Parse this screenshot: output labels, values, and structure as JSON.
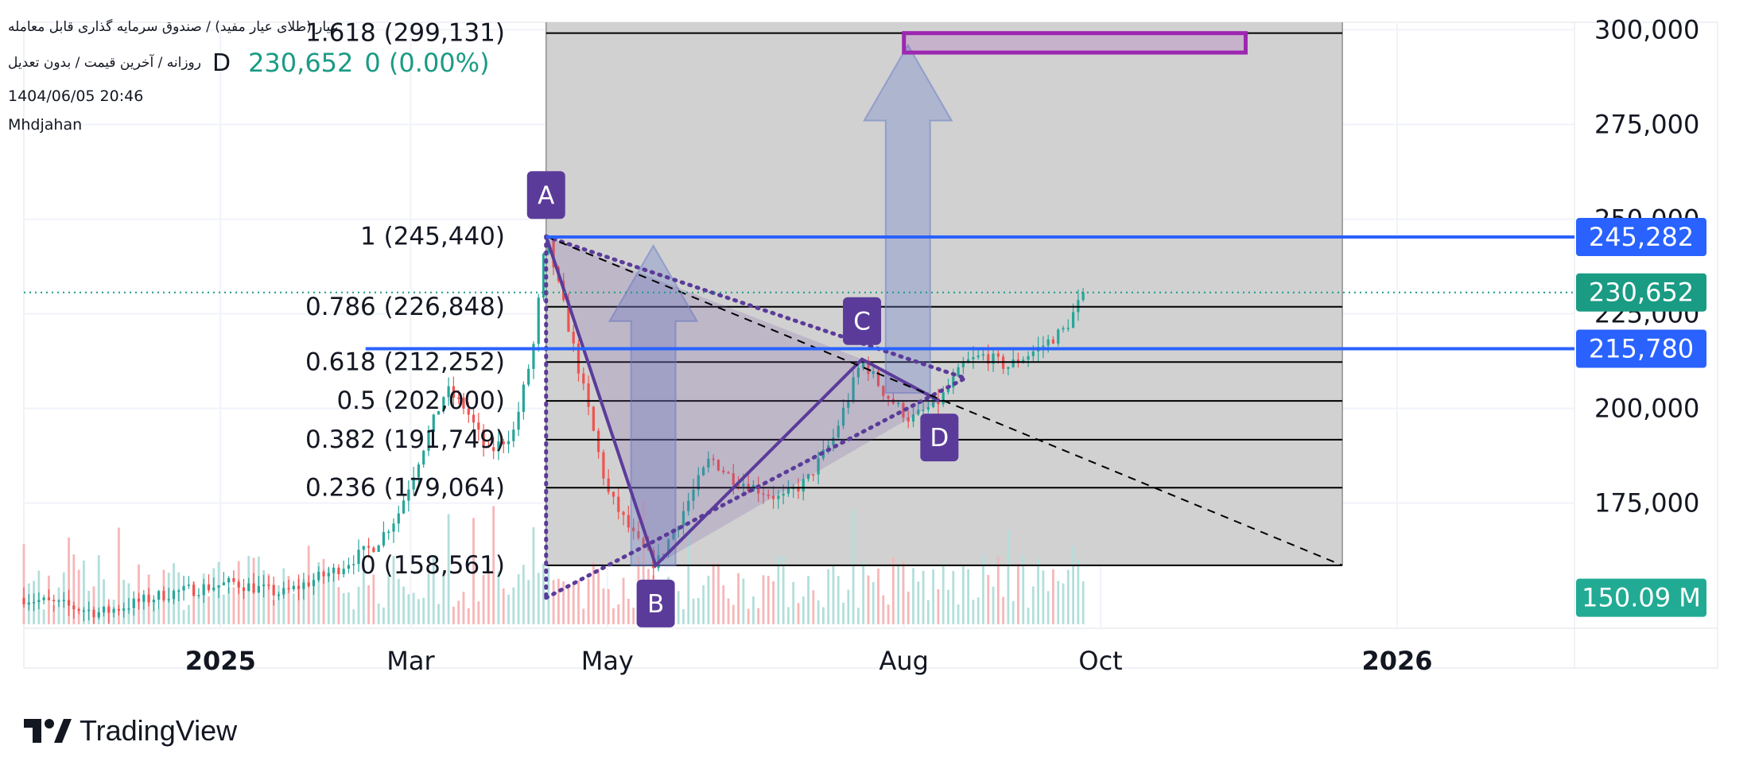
{
  "header": {
    "symbol_name": "عیار (طلای عیار مفید) / صندوق سرمایه گذاری قابل معامله",
    "interval_desc": "روزانه / آخرین قیمت / بدون تعدیل",
    "interval_code": "D",
    "last_price": "230,652",
    "change": "0 (0.00%)",
    "timestamp": "1404/06/05 20:46",
    "author": "Mhdjahan"
  },
  "brand": {
    "name": "TradingView",
    "logo_icon": "tradingview-logo-icon"
  },
  "colors": {
    "up": "#26a69a",
    "down": "#ef5350",
    "vol_up": "#b2dfdb",
    "vol_down": "#f7b6b8",
    "pattern": "#5b3b9a",
    "box_fill": "#cfcfcf",
    "level_line": "#2962ff",
    "last_price": "#1a9b84",
    "target_box": "#9c27b0"
  },
  "chart_data": {
    "type": "candlestick",
    "x_range": [
      "2024-11-01",
      "2026-02-25"
    ],
    "y_range": [
      143000,
      302000
    ],
    "x_ticks": [
      {
        "date": "2025-01-01",
        "label": "2025",
        "bold": true
      },
      {
        "date": "2025-03-01",
        "label": "Mar",
        "bold": false
      },
      {
        "date": "2025-05-01",
        "label": "May",
        "bold": false
      },
      {
        "date": "2025-08-01",
        "label": "Aug",
        "bold": false
      },
      {
        "date": "2025-10-01",
        "label": "Oct",
        "bold": false
      },
      {
        "date": "2026-01-01",
        "label": "2026",
        "bold": true
      }
    ],
    "y_ticks": [
      {
        "value": 175000,
        "label": "175,000"
      },
      {
        "value": 200000,
        "label": "200,000"
      },
      {
        "value": 225000,
        "label": "225,000"
      },
      {
        "value": 250000,
        "label": "250,000"
      },
      {
        "value": 275000,
        "label": "275,000"
      },
      {
        "value": 300000,
        "label": "300,000"
      }
    ],
    "price_path": [
      [
        "2024-11-01",
        150000
      ],
      [
        "2024-11-25",
        146000
      ],
      [
        "2024-12-15",
        151000
      ],
      [
        "2025-01-05",
        154000
      ],
      [
        "2025-01-20",
        151000
      ],
      [
        "2025-02-05",
        157000
      ],
      [
        "2025-02-18",
        164000
      ],
      [
        "2025-02-25",
        172000
      ],
      [
        "2025-03-05",
        190000
      ],
      [
        "2025-03-12",
        205000
      ],
      [
        "2025-03-18",
        200000
      ],
      [
        "2025-03-25",
        188000
      ],
      [
        "2025-04-02",
        194000
      ],
      [
        "2025-04-08",
        216000
      ],
      [
        "2025-04-12",
        245440
      ],
      [
        "2025-04-18",
        225000
      ],
      [
        "2025-04-25",
        200000
      ],
      [
        "2025-05-01",
        178000
      ],
      [
        "2025-05-10",
        165000
      ],
      [
        "2025-05-16",
        158561
      ],
      [
        "2025-05-24",
        172000
      ],
      [
        "2025-06-02",
        187000
      ],
      [
        "2025-06-08",
        182000
      ],
      [
        "2025-06-16",
        179000
      ],
      [
        "2025-06-24",
        176000
      ],
      [
        "2025-07-02",
        181000
      ],
      [
        "2025-07-10",
        192000
      ],
      [
        "2025-07-19",
        213000
      ],
      [
        "2025-07-26",
        204000
      ],
      [
        "2025-08-03",
        197000
      ],
      [
        "2025-08-12",
        202000
      ],
      [
        "2025-08-20",
        212000
      ],
      [
        "2025-08-26",
        214000
      ],
      [
        "2025-09-02",
        211000
      ],
      [
        "2025-09-12",
        216000
      ],
      [
        "2025-09-20",
        221000
      ],
      [
        "2025-09-26",
        230652
      ]
    ],
    "volume_max": "150.09 M",
    "fib_levels": [
      {
        "ratio": "1.618",
        "label": "1.618 (299,131)",
        "value": 299131
      },
      {
        "ratio": "1",
        "label": "1 (245,440)",
        "value": 245440
      },
      {
        "ratio": "0.786",
        "label": "0.786 (226,848)",
        "value": 226848
      },
      {
        "ratio": "0.618",
        "label": "0.618 (212,252)",
        "value": 212252
      },
      {
        "ratio": "0.5",
        "label": "0.5 (202,000)",
        "value": 202000
      },
      {
        "ratio": "0.382",
        "label": "0.382 (191,749)",
        "value": 191749
      },
      {
        "ratio": "0.236",
        "label": "0.236 (179,064)",
        "value": 179064
      },
      {
        "ratio": "0",
        "label": "0 (158,561)",
        "value": 158561
      }
    ],
    "fib_range": [
      "2025-04-12",
      "2025-12-15"
    ],
    "pattern_points": [
      {
        "label": "A",
        "date": "2025-04-12",
        "value": 245440
      },
      {
        "label": "B",
        "date": "2025-05-16",
        "value": 158561
      },
      {
        "label": "C",
        "date": "2025-07-19",
        "value": 213000
      },
      {
        "label": "D",
        "date": "2025-08-12",
        "value": 202000
      }
    ],
    "horizontal_levels": [
      {
        "value": 245282,
        "label": "245,282"
      },
      {
        "value": 215780,
        "label": "215,780"
      }
    ],
    "last_price": {
      "value": 230652,
      "label": "230,652"
    },
    "target_zone": {
      "x": [
        "2025-08-01",
        "2025-11-15"
      ],
      "y": [
        294000,
        299131
      ]
    }
  }
}
